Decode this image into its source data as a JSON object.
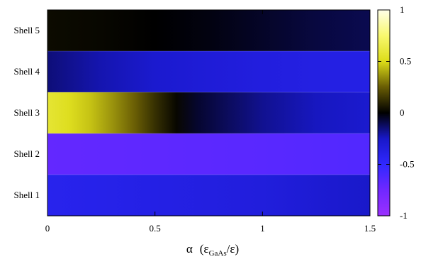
{
  "chart_data": {
    "type": "heatmap",
    "title": "",
    "xlabel": {
      "symbol": "α",
      "open": "(ε",
      "subscript": "GaAs",
      "close": "/ε)"
    },
    "ylabel": "",
    "x_ticks": [
      "0",
      "0.5",
      "1",
      "1.5"
    ],
    "x_tick_values": [
      0,
      0.5,
      1,
      1.5
    ],
    "xlim": [
      0,
      1.5
    ],
    "colorbar": {
      "range": [
        -1,
        1
      ],
      "ticks": [
        "1",
        "0.5",
        "0",
        "-0.5",
        "-1"
      ],
      "tick_values": [
        1,
        0.5,
        0,
        -0.5,
        -1
      ]
    },
    "rows": [
      {
        "label": "Shell 5",
        "x": [
          0,
          0.25,
          0.5,
          0.75,
          1,
          1.25,
          1.5
        ],
        "values": [
          0.03,
          0.02,
          0.0,
          -0.02,
          -0.05,
          -0.08,
          -0.1
        ]
      },
      {
        "label": "Shell 4",
        "x": [
          0,
          0.25,
          0.5,
          0.75,
          1,
          1.25,
          1.5
        ],
        "values": [
          -0.15,
          -0.22,
          -0.28,
          -0.32,
          -0.35,
          -0.37,
          -0.38
        ]
      },
      {
        "label": "Shell 3",
        "x": [
          0,
          0.1,
          0.2,
          0.3,
          0.4,
          0.5,
          0.6,
          0.7,
          0.85,
          1,
          1.25,
          1.5
        ],
        "values": [
          0.58,
          0.52,
          0.45,
          0.36,
          0.26,
          0.13,
          0.02,
          -0.06,
          -0.12,
          -0.18,
          -0.24,
          -0.28
        ]
      },
      {
        "label": "Shell 2",
        "x": [
          0,
          0.5,
          1,
          1.5
        ],
        "values": [
          -0.7,
          -0.68,
          -0.66,
          -0.63
        ]
      },
      {
        "label": "Shell 1",
        "x": [
          0,
          0.25,
          0.5,
          0.75,
          1,
          1.25,
          1.5
        ],
        "values": [
          -0.42,
          -0.4,
          -0.38,
          -0.36,
          -0.34,
          -0.3,
          -0.26
        ]
      }
    ],
    "grid": false,
    "legend": "none"
  }
}
